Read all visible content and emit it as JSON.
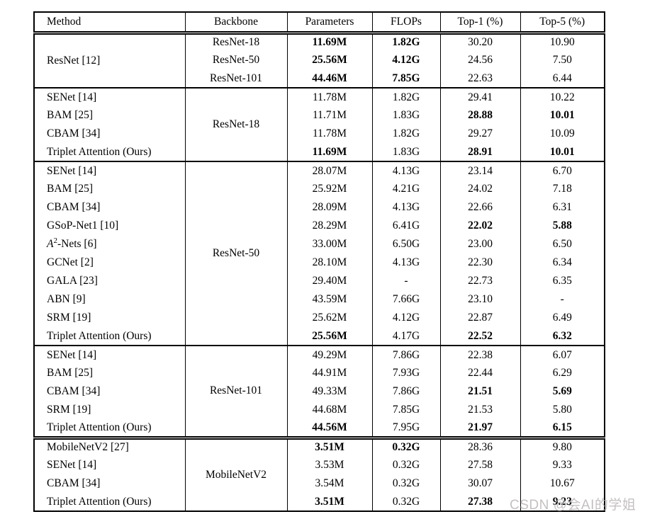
{
  "colors": {
    "background": "#ffffff",
    "border": "#000000",
    "text": "#000000",
    "watermark": "#bab5b5"
  },
  "watermark": {
    "text": "CSDN @会AI的学姐"
  },
  "table": {
    "columns": [
      "Method",
      "Backbone",
      "Parameters",
      "FLOPs",
      "Top-1 (%)",
      "Top-5 (%)"
    ],
    "blocks": [
      {
        "method": "ResNet [12]",
        "rows": [
          {
            "backbone": "ResNet-18",
            "params": "11.69M",
            "params_bold": true,
            "flops": "1.82G",
            "flops_bold": true,
            "top1": "30.20",
            "top5": "10.90"
          },
          {
            "backbone": "ResNet-50",
            "params": "25.56M",
            "params_bold": true,
            "flops": "4.12G",
            "flops_bold": true,
            "top1": "24.56",
            "top5": "7.50"
          },
          {
            "backbone": "ResNet-101",
            "params": "44.46M",
            "params_bold": true,
            "flops": "7.85G",
            "flops_bold": true,
            "top1": "22.63",
            "top5": "6.44"
          }
        ]
      },
      {
        "backbone": "ResNet-18",
        "separator": "single",
        "rows": [
          {
            "method": "SENet [14]",
            "params": "11.78M",
            "flops": "1.82G",
            "top1": "29.41",
            "top5": "10.22"
          },
          {
            "method": "BAM [25]",
            "params": "11.71M",
            "flops": "1.83G",
            "top1": "28.88",
            "top1_bold": true,
            "top5": "10.01",
            "top5_bold": true
          },
          {
            "method": "CBAM [34]",
            "params": "11.78M",
            "flops": "1.82G",
            "top1": "29.27",
            "top5": "10.09"
          },
          {
            "method": "Triplet Attention (Ours)",
            "params": "11.69M",
            "params_bold": true,
            "flops": "1.83G",
            "top1": "28.91",
            "top1_bold": true,
            "top5": "10.01",
            "top5_bold": true
          }
        ]
      },
      {
        "backbone": "ResNet-50",
        "separator": "single",
        "rows": [
          {
            "method": "SENet [14]",
            "params": "28.07M",
            "flops": "4.13G",
            "top1": "23.14",
            "top5": "6.70"
          },
          {
            "method": "BAM [25]",
            "params": "25.92M",
            "flops": "4.21G",
            "top1": "24.02",
            "top5": "7.18"
          },
          {
            "method": "CBAM [34]",
            "params": "28.09M",
            "flops": "4.13G",
            "top1": "22.66",
            "top5": "6.31"
          },
          {
            "method": "GSoP-Net1 [10]",
            "params": "28.29M",
            "flops": "6.41G",
            "top1": "22.02",
            "top1_bold": true,
            "top5": "5.88",
            "top5_bold": true
          },
          {
            "method": "A²-Nets [6]",
            "method_parts": {
              "italic": "A",
              "sup": "2",
              "rest": "-Nets [6]"
            },
            "params": "33.00M",
            "flops": "6.50G",
            "top1": "23.00",
            "top5": "6.50"
          },
          {
            "method": "GCNet [2]",
            "params": "28.10M",
            "flops": "4.13G",
            "top1": "22.30",
            "top5": "6.34"
          },
          {
            "method": "GALA [23]",
            "params": "29.40M",
            "flops": "-",
            "top1": "22.73",
            "top5": "6.35"
          },
          {
            "method": "ABN [9]",
            "params": "43.59M",
            "flops": "7.66G",
            "top1": "23.10",
            "top5": "-"
          },
          {
            "method": "SRM [19]",
            "params": "25.62M",
            "flops": "4.12G",
            "top1": "22.87",
            "top5": "6.49"
          },
          {
            "method": "Triplet Attention (Ours)",
            "params": "25.56M",
            "params_bold": true,
            "flops": "4.17G",
            "top1": "22.52",
            "top1_bold": true,
            "top5": "6.32",
            "top5_bold": true
          }
        ]
      },
      {
        "backbone": "ResNet-101",
        "separator": "single",
        "rows": [
          {
            "method": "SENet [14]",
            "params": "49.29M",
            "flops": "7.86G",
            "top1": "22.38",
            "top5": "6.07"
          },
          {
            "method": "BAM [25]",
            "params": "44.91M",
            "flops": "7.93G",
            "top1": "22.44",
            "top5": "6.29"
          },
          {
            "method": "CBAM [34]",
            "params": "49.33M",
            "flops": "7.86G",
            "top1": "21.51",
            "top1_bold": true,
            "top5": "5.69",
            "top5_bold": true
          },
          {
            "method": "SRM [19]",
            "params": "44.68M",
            "flops": "7.85G",
            "top1": "21.53",
            "top5": "5.80"
          },
          {
            "method": "Triplet Attention (Ours)",
            "params": "44.56M",
            "params_bold": true,
            "flops": "7.95G",
            "top1": "21.97",
            "top1_bold": true,
            "top5": "6.15",
            "top5_bold": true
          }
        ]
      },
      {
        "backbone": "MobileNetV2",
        "separator": "double",
        "rows": [
          {
            "method": "MobileNetV2 [27]",
            "params": "3.51M",
            "params_bold": true,
            "flops": "0.32G",
            "flops_bold": true,
            "top1": "28.36",
            "top5": "9.80"
          },
          {
            "method": "SENet [14]",
            "params": "3.53M",
            "flops": "0.32G",
            "top1": "27.58",
            "top5": "9.33"
          },
          {
            "method": "CBAM [34]",
            "params": "3.54M",
            "flops": "0.32G",
            "top1": "30.07",
            "top5": "10.67"
          },
          {
            "method": "Triplet Attention (Ours)",
            "params": "3.51M",
            "params_bold": true,
            "flops": "0.32G",
            "top1": "27.38",
            "top1_bold": true,
            "top5": "9.23",
            "top5_bold": true
          }
        ]
      }
    ]
  }
}
